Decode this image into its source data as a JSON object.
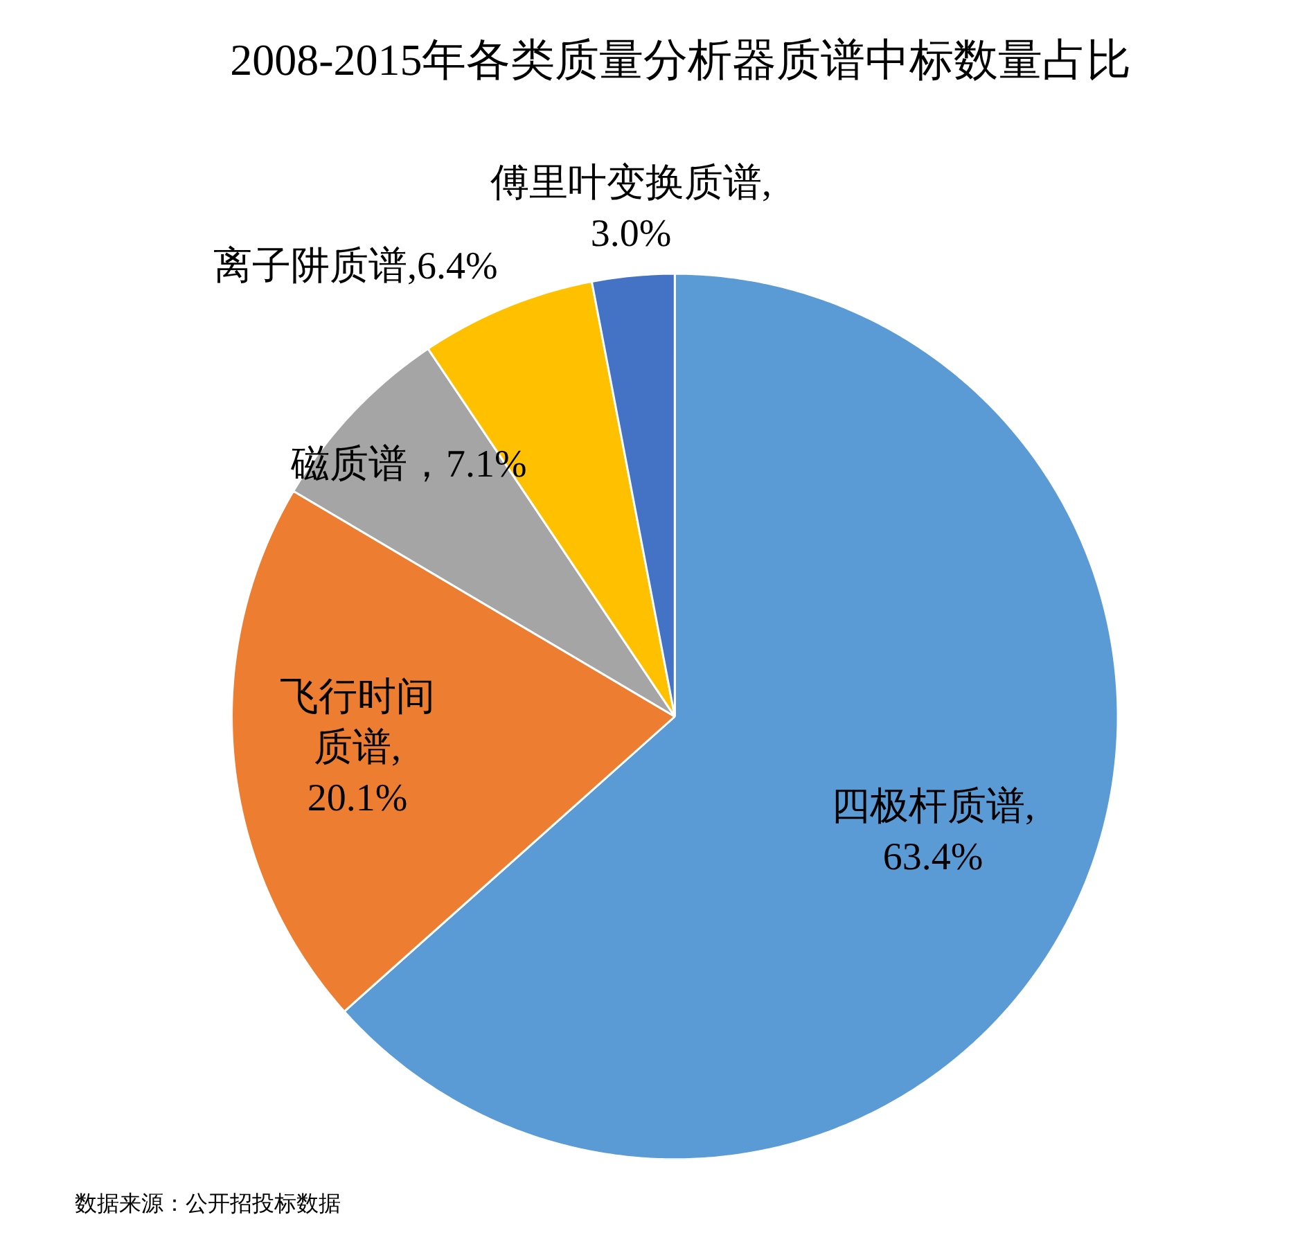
{
  "chart_data": {
    "type": "pie",
    "title": "2008-2015年各类质量分析器质谱中标数量占比",
    "categories": [
      "四极杆质谱",
      "飞行时间质谱",
      "磁质谱",
      "离子阱质谱",
      "傅里叶变换质谱"
    ],
    "values": [
      63.4,
      20.1,
      7.1,
      6.4,
      3.0
    ],
    "colors": [
      "#5b9bd5",
      "#ed7d31",
      "#a5a5a5",
      "#ffc000",
      "#4472c4"
    ],
    "value_labels": [
      ",63.4%",
      ",20.1%",
      "，7.1%",
      ",6.4%",
      ",3.0%"
    ],
    "legend": false,
    "annotations": [
      "数据来源：公开招投标数据"
    ]
  }
}
